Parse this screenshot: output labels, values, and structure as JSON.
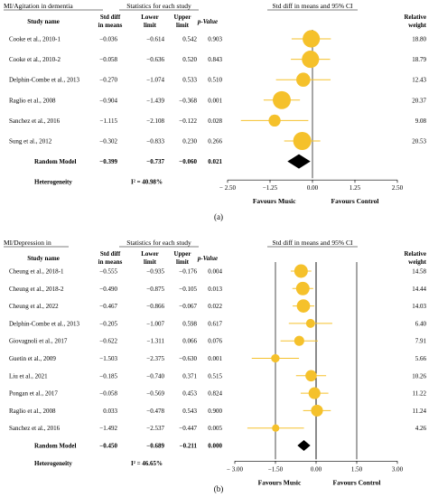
{
  "chart_data": [
    {
      "type": "forest",
      "section_label": "MI/Agitation in dementia",
      "stats_title": "Statistics for each study",
      "plot_title": "Std diff in means and 95% CI",
      "panel_label": "(a)",
      "columns": {
        "study": "Study name",
        "smd": [
          "Std diff",
          "in means"
        ],
        "lower": [
          "Lower",
          "limit"
        ],
        "upper": [
          "Upper",
          "limit"
        ],
        "p": "p-Value",
        "weight": [
          "Relative",
          "weight"
        ]
      },
      "studies": [
        {
          "name": "Cooke et al., 2010-1",
          "smd": "−0.036",
          "lower": "−0.614",
          "upper": "0.542",
          "p": "0.903",
          "weight": "18.80",
          "smd_v": -0.036,
          "lower_v": -0.614,
          "upper_v": 0.542,
          "weight_v": 18.8
        },
        {
          "name": "Cooke et al., 2010-2",
          "smd": "−0.058",
          "lower": "−0.636",
          "upper": "0.520",
          "p": "0.843",
          "weight": "18.79",
          "smd_v": -0.058,
          "lower_v": -0.636,
          "upper_v": 0.52,
          "weight_v": 18.79
        },
        {
          "name": "Delphin-Combe et al., 2013",
          "smd": "−0.270",
          "lower": "−1.074",
          "upper": "0.533",
          "p": "0.510",
          "weight": "12.43",
          "smd_v": -0.27,
          "lower_v": -1.074,
          "upper_v": 0.533,
          "weight_v": 12.43
        },
        {
          "name": "Raglio et al., 2008",
          "smd": "−0.904",
          "lower": "−1.439",
          "upper": "−0.368",
          "p": "0.001",
          "weight": "20.37",
          "smd_v": -0.904,
          "lower_v": -1.439,
          "upper_v": -0.368,
          "weight_v": 20.37
        },
        {
          "name": "Sanchez et al., 2016",
          "smd": "−1.115",
          "lower": "−2.108",
          "upper": "−0.122",
          "p": "0.028",
          "weight": "9.08",
          "smd_v": -1.115,
          "lower_v": -2.108,
          "upper_v": -0.122,
          "weight_v": 9.08
        },
        {
          "name": "Sung et al., 2012",
          "smd": "−0.302",
          "lower": "−0.833",
          "upper": "0.230",
          "p": "0.266",
          "weight": "20.53",
          "smd_v": -0.302,
          "lower_v": -0.833,
          "upper_v": 0.23,
          "weight_v": 20.53
        }
      ],
      "summary": {
        "name": "Random Model",
        "smd": "−0.399",
        "lower": "−0.737",
        "upper": "−0.060",
        "p": "0.021",
        "smd_v": -0.399,
        "lower_v": -0.737,
        "upper_v": -0.06
      },
      "heterogeneity": {
        "label": "Heterogeneity",
        "value": "I² = 40.98%"
      },
      "axis": {
        "min": -2.5,
        "max": 2.5,
        "ticks": [
          -2.5,
          -1.25,
          0,
          1.25,
          2.5
        ],
        "tick_labels": [
          "− 2.50",
          "−1.25",
          "0.00",
          "1.25",
          "2.50"
        ],
        "gridlines": []
      },
      "favours_left": "Favours Music",
      "favours_right": "Favours Control",
      "colors": {
        "marker": "#f5c12b",
        "ci": "#f5c12b",
        "summary": "#000000"
      }
    },
    {
      "type": "forest",
      "section_label": "MI/Depression in",
      "stats_title": "Statistics for each study",
      "plot_title": "Std diff in means and 95% CI",
      "panel_label": "(b)",
      "columns": {
        "study": "Study name",
        "smd": [
          "Std diff",
          "in means"
        ],
        "lower": [
          "Lower",
          "limit"
        ],
        "upper": [
          "Upper",
          "limit"
        ],
        "p": "p-Value",
        "weight": [
          "Relative",
          "weight"
        ]
      },
      "studies": [
        {
          "name": "Cheung et al., 2018-1",
          "smd": "−0.555",
          "lower": "−0.935",
          "upper": "−0.176",
          "p": "0.004",
          "weight": "14.58",
          "smd_v": -0.555,
          "lower_v": -0.935,
          "upper_v": -0.176,
          "weight_v": 14.58
        },
        {
          "name": "Cheung et al., 2018-2",
          "smd": "−0.490",
          "lower": "−0.875",
          "upper": "−0.105",
          "p": "0.013",
          "weight": "14.44",
          "smd_v": -0.49,
          "lower_v": -0.875,
          "upper_v": -0.105,
          "weight_v": 14.44
        },
        {
          "name": "Cheung et al., 2022",
          "smd": "−0.467",
          "lower": "−0.866",
          "upper": "−0.067",
          "p": "0.022",
          "weight": "14.03",
          "smd_v": -0.467,
          "lower_v": -0.866,
          "upper_v": -0.067,
          "weight_v": 14.03
        },
        {
          "name": "Delphin-Combe et al., 2013",
          "smd": "−0.205",
          "lower": "−1.007",
          "upper": "0.598",
          "p": "0.617",
          "weight": "6.40",
          "smd_v": -0.205,
          "lower_v": -1.007,
          "upper_v": 0.598,
          "weight_v": 6.4
        },
        {
          "name": "Giovagnoli et al., 2017",
          "smd": "−0.622",
          "lower": "−1.311",
          "upper": "0.066",
          "p": "0.076",
          "weight": "7.91",
          "smd_v": -0.622,
          "lower_v": -1.311,
          "upper_v": 0.066,
          "weight_v": 7.91
        },
        {
          "name": "Guetin et al., 2009",
          "smd": "−1.503",
          "lower": "−2.375",
          "upper": "−0.630",
          "p": "0.001",
          "weight": "5.66",
          "smd_v": -1.503,
          "lower_v": -2.375,
          "upper_v": -0.63,
          "weight_v": 5.66
        },
        {
          "name": "Liu et al., 2021",
          "smd": "−0.185",
          "lower": "−0.740",
          "upper": "0.371",
          "p": "0.515",
          "weight": "10.26",
          "smd_v": -0.185,
          "lower_v": -0.74,
          "upper_v": 0.371,
          "weight_v": 10.26
        },
        {
          "name": "Pongan et al., 2017",
          "smd": "−0.058",
          "lower": "−0.569",
          "upper": "0.453",
          "p": "0.824",
          "weight": "11.22",
          "smd_v": -0.058,
          "lower_v": -0.569,
          "upper_v": 0.453,
          "weight_v": 11.22
        },
        {
          "name": "Raglio et al., 2008",
          "smd": "0.033",
          "lower": "−0.478",
          "upper": "0.543",
          "p": "0.900",
          "weight": "11.24",
          "smd_v": 0.033,
          "lower_v": -0.478,
          "upper_v": 0.543,
          "weight_v": 11.24
        },
        {
          "name": "Sanchez et al., 2016",
          "smd": "−1.492",
          "lower": "−2.537",
          "upper": "−0.447",
          "p": "0.005",
          "weight": "4.26",
          "smd_v": -1.492,
          "lower_v": -2.537,
          "upper_v": -0.447,
          "weight_v": 4.26
        }
      ],
      "summary": {
        "name": "Random Model",
        "smd": "−0.450",
        "lower": "−0.689",
        "upper": "−0.211",
        "p": "0.000",
        "smd_v": -0.45,
        "lower_v": -0.689,
        "upper_v": -0.211
      },
      "heterogeneity": {
        "label": "Heterogeneity",
        "value": "I² = 46.65%"
      },
      "axis": {
        "min": -3,
        "max": 3,
        "ticks": [
          -3,
          -1.5,
          0,
          1.5,
          3
        ],
        "tick_labels": [
          "− 3.00",
          "−1.50",
          "0.00",
          "1.50",
          "3.00"
        ],
        "gridlines": [
          -1.5,
          0,
          1.5
        ]
      },
      "favours_left": "Favours Music",
      "favours_right": "Favours Control",
      "colors": {
        "marker": "#f5c12b",
        "ci": "#f5c12b",
        "summary": "#000000"
      }
    }
  ]
}
